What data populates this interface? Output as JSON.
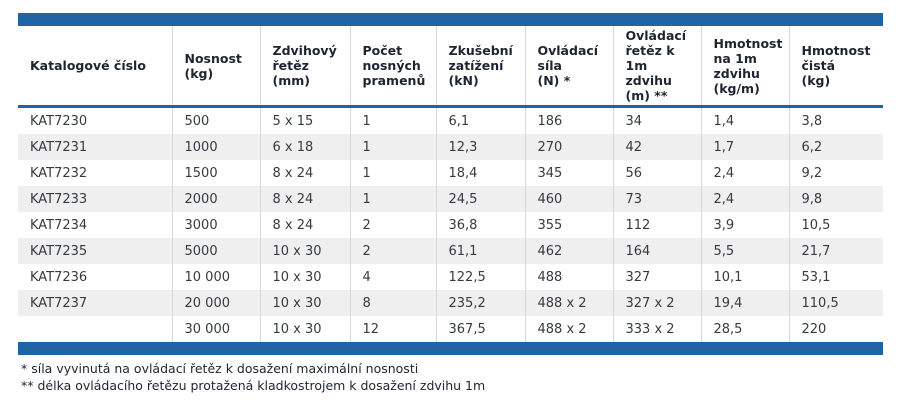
{
  "colors": {
    "accent_blue": "#2164A6",
    "row_stripe": "#efefef",
    "divider_gray": "#d8d8d8",
    "header_text": "#1c2531",
    "body_text": "#363b42"
  },
  "table": {
    "columns": [
      "Katalogové číslo",
      "Nosnost\n(kg)",
      "Zdvihový\nřetěz\n(mm)",
      "Počet\nnosných\npramenů",
      "Zkušební\nzatížení\n(kN)",
      "Ovládací\nsíla\n(N) *",
      "Ovládací\nřetěz k\n1m zdvihu\n(m) **",
      "Hmotnost\nna 1m\nzdvihu\n(kg/m)",
      "Hmotnost\nčistá\n(kg)"
    ],
    "rows": [
      [
        "KAT7230",
        "500",
        "5 x 15",
        "1",
        "6,1",
        "186",
        "34",
        "1,4",
        "3,8"
      ],
      [
        "KAT7231",
        "1000",
        "6 x 18",
        "1",
        "12,3",
        "270",
        "42",
        "1,7",
        "6,2"
      ],
      [
        "KAT7232",
        "1500",
        "8 x 24",
        "1",
        "18,4",
        "345",
        "56",
        "2,4",
        "9,2"
      ],
      [
        "KAT7233",
        "2000",
        "8 x 24",
        "1",
        "24,5",
        "460",
        "73",
        "2,4",
        "9,8"
      ],
      [
        "KAT7234",
        "3000",
        "8 x 24",
        "2",
        "36,8",
        "355",
        "112",
        "3,9",
        "10,5"
      ],
      [
        "KAT7235",
        "5000",
        "10 x 30",
        "2",
        "61,1",
        "462",
        "164",
        "5,5",
        "21,7"
      ],
      [
        "KAT7236",
        "10 000",
        "10 x 30",
        "4",
        "122,5",
        "488",
        "327",
        "10,1",
        "53,1"
      ],
      [
        "KAT7237",
        "20 000",
        "10 x 30",
        "8",
        "235,2",
        "488 x 2",
        "327 x 2",
        "19,4",
        "110,5"
      ],
      [
        "",
        "30 000",
        "10 x 30",
        "12",
        "367,5",
        "488 x 2",
        "333 x 2",
        "28,5",
        "220"
      ]
    ]
  },
  "footnotes": [
    "* síla vyvinutá na ovládací řetěz k dosažení maximální nosnosti",
    "** délka ovládacího řetězu protažená kladkostrojem k dosažení zdvihu 1m"
  ],
  "chart_data": {
    "type": "table",
    "title": "",
    "columns": [
      "Katalogové číslo",
      "Nosnost (kg)",
      "Zdvihový řetěz (mm)",
      "Počet nosných pramenů",
      "Zkušební zatížení (kN)",
      "Ovládací síla (N) *",
      "Ovládací řetěz k 1m zdvihu (m) **",
      "Hmotnost na 1m zdvihu (kg/m)",
      "Hmotnost čistá (kg)"
    ],
    "rows": [
      [
        "KAT7230",
        "500",
        "5 x 15",
        "1",
        "6,1",
        "186",
        "34",
        "1,4",
        "3,8"
      ],
      [
        "KAT7231",
        "1000",
        "6 x 18",
        "1",
        "12,3",
        "270",
        "42",
        "1,7",
        "6,2"
      ],
      [
        "KAT7232",
        "1500",
        "8 x 24",
        "1",
        "18,4",
        "345",
        "56",
        "2,4",
        "9,2"
      ],
      [
        "KAT7233",
        "2000",
        "8 x 24",
        "1",
        "24,5",
        "460",
        "73",
        "2,4",
        "9,8"
      ],
      [
        "KAT7234",
        "3000",
        "8 x 24",
        "2",
        "36,8",
        "355",
        "112",
        "3,9",
        "10,5"
      ],
      [
        "KAT7235",
        "5000",
        "10 x 30",
        "2",
        "61,1",
        "462",
        "164",
        "5,5",
        "21,7"
      ],
      [
        "KAT7236",
        "10 000",
        "10 x 30",
        "4",
        "122,5",
        "488",
        "327",
        "10,1",
        "53,1"
      ],
      [
        "KAT7237",
        "20 000",
        "10 x 30",
        "8",
        "235,2",
        "488 x 2",
        "327 x 2",
        "19,4",
        "110,5"
      ],
      [
        "",
        "30 000",
        "10 x 30",
        "12",
        "367,5",
        "488 x 2",
        "333 x 2",
        "28,5",
        "220"
      ]
    ],
    "footnotes": [
      "* síla vyvinutá na ovládací řetěz k dosažení maximální nosnosti",
      "** délka ovládacího řetězu protažená kladkostrojem k dosažení zdvihu 1m"
    ]
  }
}
